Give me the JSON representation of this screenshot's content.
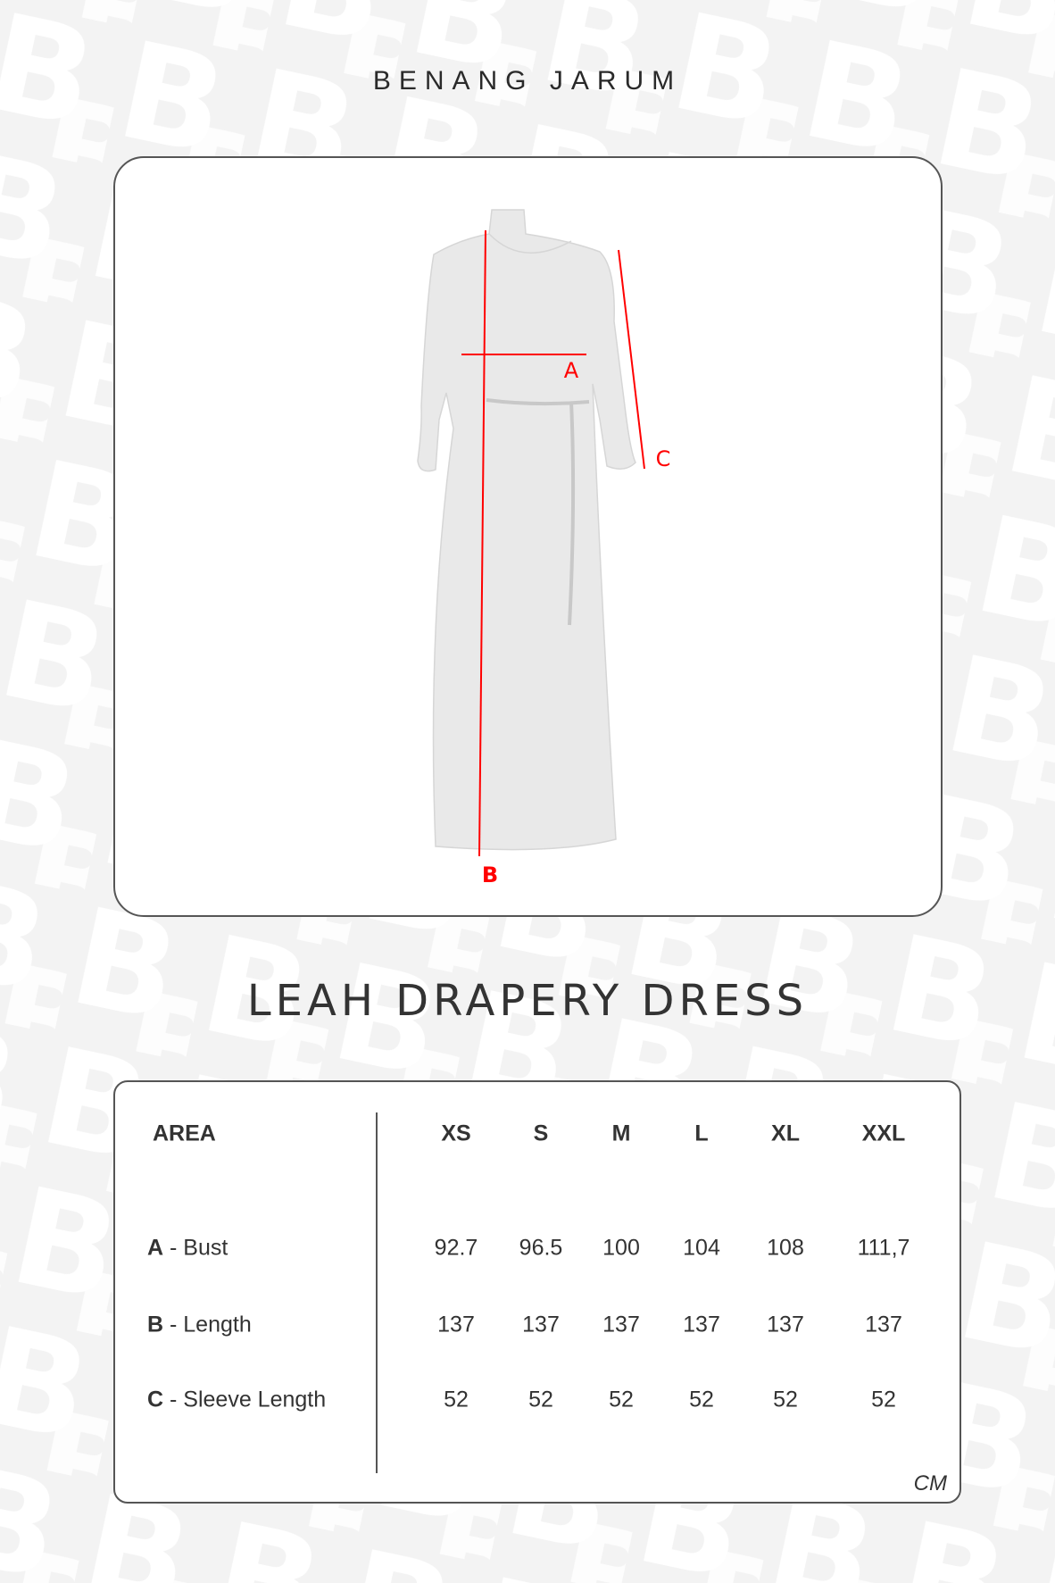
{
  "brand": "BENANG JARUM",
  "diagram": {
    "labels": {
      "a": "A",
      "b": "B",
      "c": "C"
    },
    "line_color": "#ff0000"
  },
  "product_title": "LEAH DRAPERY DRESS",
  "size_table": {
    "area_header": "AREA",
    "sizes": [
      "XS",
      "S",
      "M",
      "L",
      "XL",
      "XXL"
    ],
    "rows": [
      {
        "code": "A",
        "sep": " - ",
        "name": "Bust",
        "values": [
          "92.7",
          "96.5",
          "100",
          "104",
          "108",
          "111,7"
        ]
      },
      {
        "code": "B",
        "sep": " - ",
        "name": "Length",
        "values": [
          "137",
          "137",
          "137",
          "137",
          "137",
          "137"
        ]
      },
      {
        "code": "C",
        "sep": " - ",
        "name": "Sleeve Length",
        "values": [
          "52",
          "52",
          "52",
          "52",
          "52",
          "52"
        ]
      }
    ],
    "unit": "CM"
  }
}
